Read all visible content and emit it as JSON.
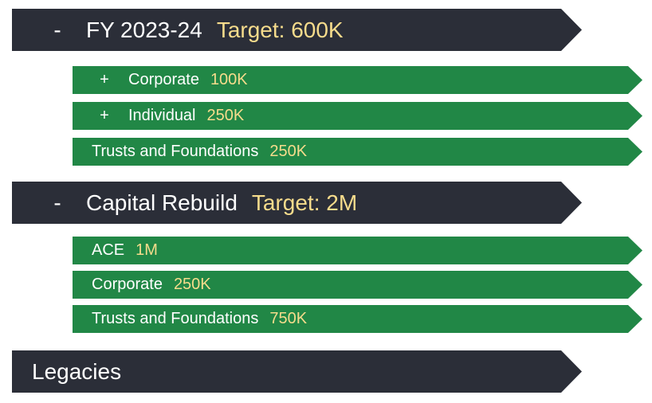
{
  "sections": [
    {
      "toggle": "-",
      "title": "FY 2023-24",
      "target": "Target: 600K",
      "items": [
        {
          "toggle": "+",
          "label": "Corporate",
          "amount": "100K"
        },
        {
          "toggle": "+",
          "label": "Individual",
          "amount": "250K"
        },
        {
          "label": "Trusts and Foundations",
          "amount": "250K"
        }
      ]
    },
    {
      "toggle": "-",
      "title": "Capital Rebuild",
      "target": "Target: 2M",
      "items": [
        {
          "label": "ACE",
          "amount": "1M"
        },
        {
          "label": "Corporate",
          "amount": "250K"
        },
        {
          "label": "Trusts and Foundations",
          "amount": "750K"
        }
      ]
    },
    {
      "title": "Legacies"
    }
  ],
  "colors": {
    "section_bar": "#2b2e38",
    "item_bar": "#218746",
    "amount_text": "#f6dc8c",
    "label_text": "#ffffff"
  }
}
